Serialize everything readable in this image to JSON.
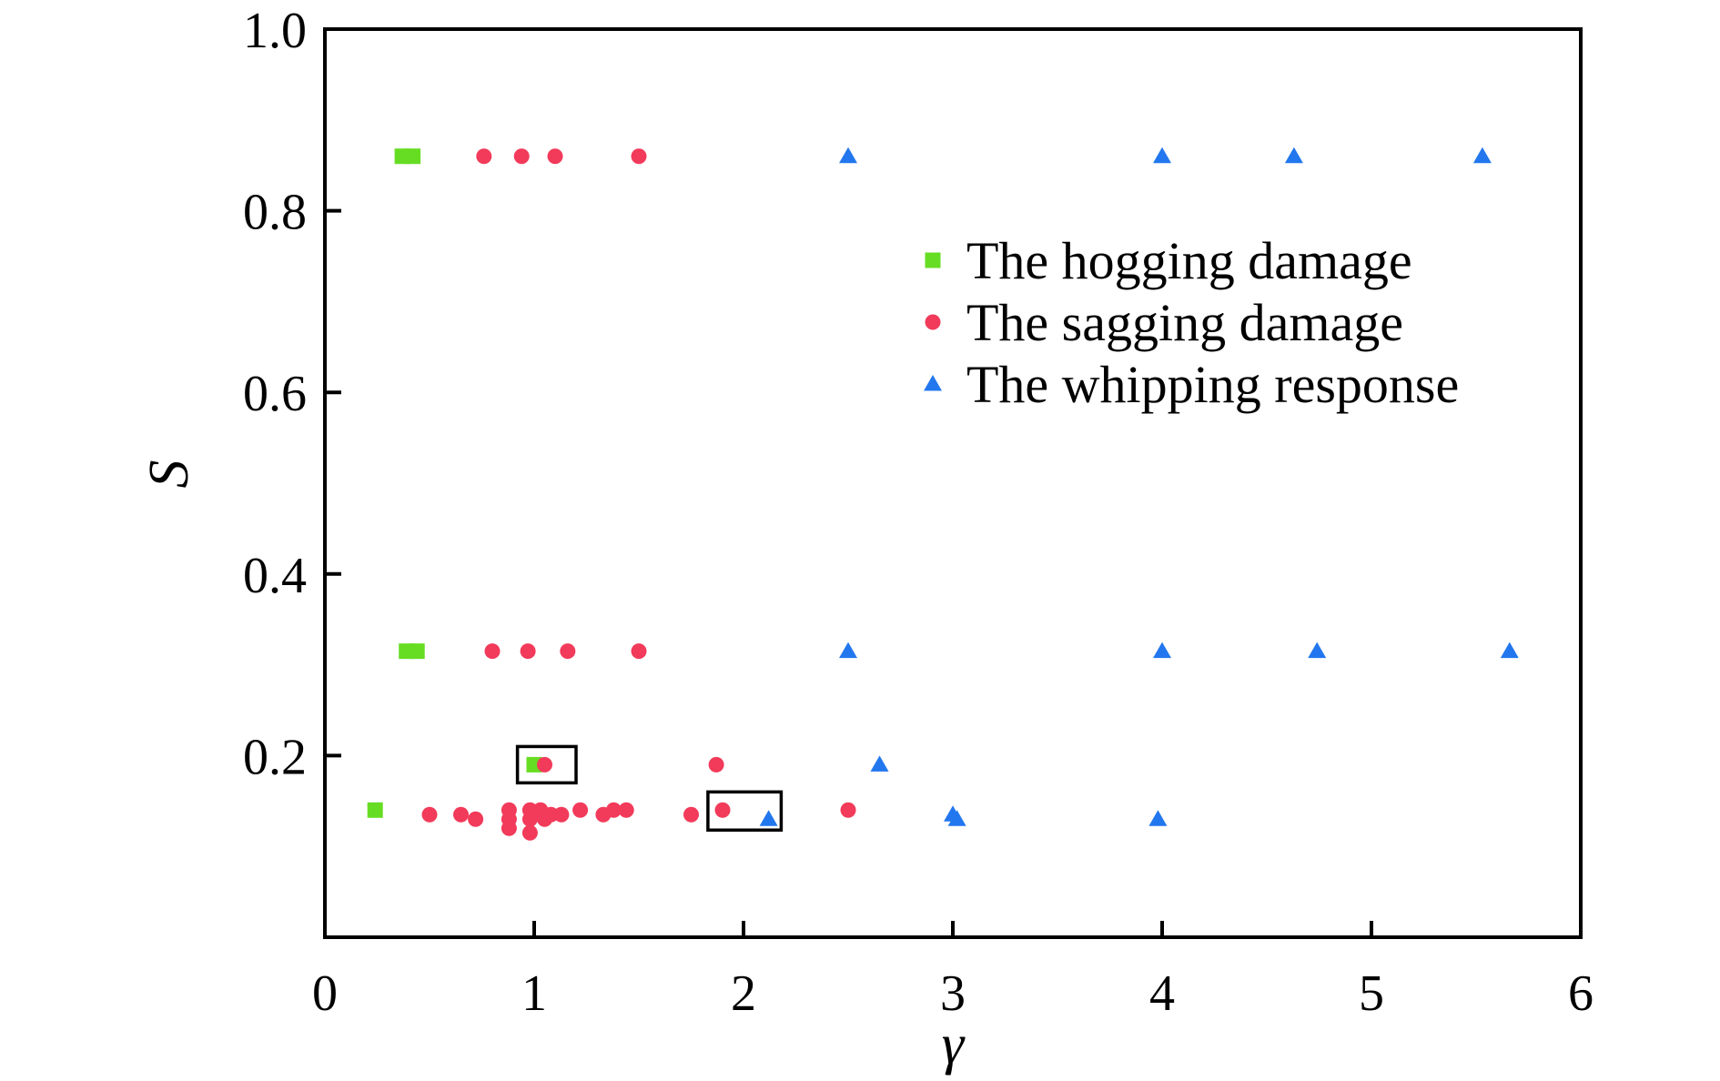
{
  "chart_data": {
    "type": "scatter",
    "title": "",
    "xlabel": "γ",
    "ylabel": "S",
    "xlim": [
      0,
      6
    ],
    "ylim": [
      0,
      1.0
    ],
    "x_ticks": [
      "0",
      "1",
      "2",
      "3",
      "4",
      "5",
      "6"
    ],
    "y_ticks": [
      "0.2",
      "0.4",
      "0.6",
      "0.8",
      "1.0"
    ],
    "grid": false,
    "legend_position": "right",
    "series": [
      {
        "name": "The hogging damage",
        "marker": "square",
        "color": "#66dd22",
        "points": [
          [
            0.37,
            0.86
          ],
          [
            0.42,
            0.86
          ],
          [
            0.39,
            0.315
          ],
          [
            0.44,
            0.315
          ],
          [
            0.24,
            0.14
          ],
          [
            1.0,
            0.19
          ]
        ]
      },
      {
        "name": "The sagging damage",
        "marker": "circle",
        "color": "#f23a5a",
        "points": [
          [
            0.76,
            0.86
          ],
          [
            0.94,
            0.86
          ],
          [
            1.1,
            0.86
          ],
          [
            1.5,
            0.86
          ],
          [
            0.8,
            0.315
          ],
          [
            0.97,
            0.315
          ],
          [
            1.16,
            0.315
          ],
          [
            1.5,
            0.315
          ],
          [
            1.05,
            0.19
          ],
          [
            1.87,
            0.19
          ],
          [
            0.5,
            0.135
          ],
          [
            0.65,
            0.135
          ],
          [
            0.72,
            0.13
          ],
          [
            0.88,
            0.14
          ],
          [
            0.88,
            0.13
          ],
          [
            0.88,
            0.12
          ],
          [
            0.98,
            0.14
          ],
          [
            0.98,
            0.13
          ],
          [
            0.98,
            0.115
          ],
          [
            1.03,
            0.14
          ],
          [
            1.05,
            0.13
          ],
          [
            1.08,
            0.135
          ],
          [
            1.13,
            0.135
          ],
          [
            1.22,
            0.14
          ],
          [
            1.33,
            0.135
          ],
          [
            1.38,
            0.14
          ],
          [
            1.44,
            0.14
          ],
          [
            1.75,
            0.135
          ],
          [
            1.9,
            0.14
          ],
          [
            2.5,
            0.14
          ]
        ]
      },
      {
        "name": "The whipping response",
        "marker": "triangle",
        "color": "#2277ee",
        "points": [
          [
            2.5,
            0.86
          ],
          [
            4.0,
            0.86
          ],
          [
            4.63,
            0.86
          ],
          [
            5.53,
            0.86
          ],
          [
            2.5,
            0.315
          ],
          [
            4.0,
            0.315
          ],
          [
            4.74,
            0.315
          ],
          [
            5.66,
            0.315
          ],
          [
            2.65,
            0.19
          ],
          [
            3.0,
            0.135
          ],
          [
            3.02,
            0.13
          ],
          [
            2.12,
            0.13
          ],
          [
            3.98,
            0.13
          ]
        ]
      }
    ],
    "annotations": [
      {
        "type": "box",
        "x_range": [
          0.92,
          1.2
        ],
        "y_range": [
          0.17,
          0.21
        ]
      },
      {
        "type": "box",
        "x_range": [
          1.83,
          2.18
        ],
        "y_range": [
          0.118,
          0.16
        ]
      }
    ]
  }
}
